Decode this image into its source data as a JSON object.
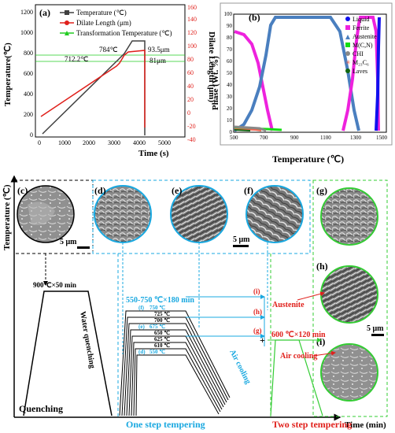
{
  "panel_a": {
    "label": "(a)",
    "x_title": "Time (s)",
    "y_left_title": "Temperature(℃)",
    "y_right_title": "Dilate Length (μm)",
    "x_ticks": [
      "0",
      "1000",
      "2000",
      "3000",
      "4000",
      "5000"
    ],
    "y_left_ticks": [
      "0",
      "200",
      "400",
      "600",
      "800",
      "1000",
      "1200"
    ],
    "y_right_ticks": [
      "-40",
      "-20",
      "0",
      "20",
      "40",
      "60",
      "80",
      "100",
      "120",
      "140",
      "160"
    ],
    "legend": [
      "Temperature (℃)",
      "Dilate Length (μm)",
      "Transformation Temperature (℃)"
    ],
    "annotations": {
      "t784": "784℃",
      "t712": "712.2℃",
      "d935": "93.5μm",
      "d81": "81μm"
    }
  },
  "panel_b": {
    "label": "(b)",
    "x_title": "Temperature (℃)",
    "y_title": "Phase (Wt. %)",
    "x_ticks": [
      "500",
      "700",
      "900",
      "1100",
      "1300",
      "1500"
    ],
    "y_ticks": [
      "0",
      "10",
      "20",
      "30",
      "40",
      "50",
      "60",
      "70",
      "80",
      "90",
      "100"
    ],
    "legend": [
      "Liquid",
      "Ferrite",
      "Austenite",
      "M(C,N)",
      "CHI",
      "M₂₃C₆",
      "Laves"
    ]
  },
  "colors": {
    "temperature": "#404040",
    "dilate": "#e0201b",
    "transformation": "#22cc22",
    "liquid": "#1010ee",
    "ferrite": "#ee22dd",
    "austenite": "#4a7fbf",
    "mcn": "#11dd11",
    "chi": "#888888",
    "m23c6": "#ee6655",
    "laves": "#116611",
    "cyan": "#19a8e0",
    "green": "#33cc33",
    "red": "#e0201b"
  },
  "process": {
    "y_axis": "Temperature (℃)",
    "x_axis": "Time (min)",
    "austenitize": "900℃×50 min",
    "water_quench": "Water quenching",
    "quenching": "Quenching",
    "one_step": "One step tempering",
    "two_step": "Two step tempering",
    "temper_range": "550-750 ℃×180 min",
    "temps": [
      "750 ℃",
      "725 ℃",
      "700 ℃",
      "675 ℃",
      "650 ℃",
      "625 ℃",
      "610 ℃",
      "550 ℃"
    ],
    "temp_labels": [
      "(f)",
      "(e)",
      "(d)"
    ],
    "air_cooling": "Air cooling",
    "air_cooling_2": "Air cooling",
    "austenite": "Austenite",
    "second_temper": "600 ℃×120 min",
    "branches": [
      "(i)",
      "(h)",
      "(g)"
    ],
    "micro_labels": [
      "(c)",
      "(d)",
      "(e)",
      "(f)",
      "(g)",
      "(h)",
      "(i)"
    ],
    "scale_bar": "5 μm"
  }
}
